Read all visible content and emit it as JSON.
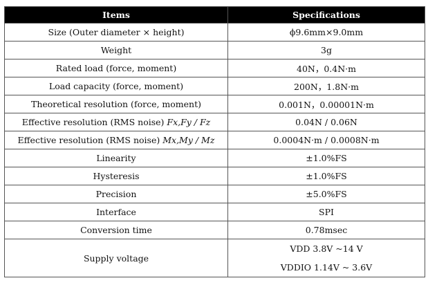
{
  "headers": {
    "items": "Items",
    "specifications": "Specifications"
  },
  "rows": [
    {
      "item": "Size (Outer diameter × height)",
      "spec": "ϕ9.6mm×9.0mm"
    },
    {
      "item": "Weight",
      "spec": "3g"
    },
    {
      "item": "Rated load (force, moment)",
      "spec": "40N，0.4N·m"
    },
    {
      "item": "Load capacity (force, moment)",
      "spec": "200N，1.8N·m"
    },
    {
      "item": "Theoretical resolution (force, moment)",
      "spec": "0.001N，0.00001N·m"
    },
    {
      "item": "Effective resolution (RMS noise)",
      "item_vars": "Fx,Fy / Fz",
      "spec": "0.04N / 0.06N"
    },
    {
      "item": "Effective resolution (RMS noise)",
      "item_vars": "Mx,My / Mz",
      "spec": "0.0004N·m / 0.0008N·m"
    },
    {
      "item": "Linearity",
      "spec": "±1.0%FS"
    },
    {
      "item": "Hysteresis",
      "spec": "±1.0%FS"
    },
    {
      "item": "Precision",
      "spec": "±5.0%FS"
    },
    {
      "item": "Interface",
      "spec": "SPI"
    },
    {
      "item": "Conversion time",
      "spec": "0.78msec"
    },
    {
      "item": "Supply voltage",
      "spec_lines": [
        "VDD 3.8V ~14 V",
        "VDDIO 1.14V ~ 3.6V"
      ]
    }
  ]
}
